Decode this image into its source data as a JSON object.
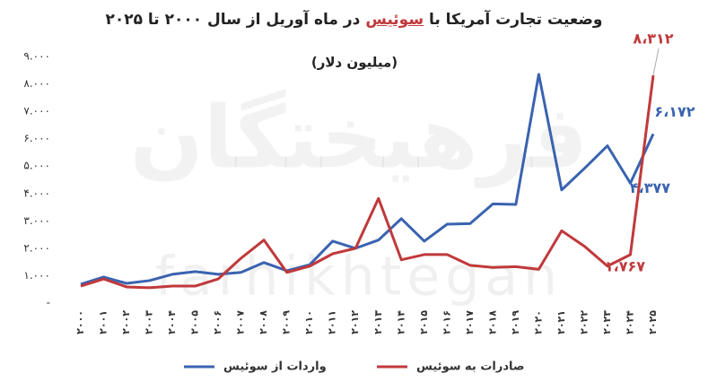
{
  "chart_data": {
    "type": "line",
    "title": [
      "وضعیت تجارت آمریکا با",
      "سوئیس",
      "در ماه آوریل از سال ۲۰۰۰ تا ۲۰۲۵"
    ],
    "subtitle": "(میلیون دلار)",
    "watermark": [
      "فرهیختگان",
      "farhikhtegan"
    ],
    "categories": [
      "۲۰۰۰",
      "۲۰۰۱",
      "۲۰۰۲",
      "۲۰۰۳",
      "۲۰۰۴",
      "۲۰۰۵",
      "۲۰۰۶",
      "۲۰۰۷",
      "۲۰۰۸",
      "۲۰۰۹",
      "۲۰۱۰",
      "۲۰۱۱",
      "۲۰۱۲",
      "۲۰۱۳",
      "۲۰۱۴",
      "۲۰۱۵",
      "۲۰۱۶",
      "۲۰۱۷",
      "۲۰۱۸",
      "۲۰۱۹",
      "۲۰۲۰",
      "۲۰۲۱",
      "۲۰۲۲",
      "۲۰۲۳",
      "۲۰۲۴",
      "۲۰۲۵"
    ],
    "series": [
      {
        "name": "واردات از سوئیس",
        "color": "#3a63b0",
        "values": [
          690,
          950,
          720,
          820,
          1050,
          1150,
          1050,
          1120,
          1480,
          1180,
          1400,
          2260,
          2000,
          2300,
          3080,
          2260,
          2880,
          2900,
          3620,
          3600,
          8350,
          4130,
          4920,
          5740,
          4377,
          6172
        ],
        "value_labels": [
          null,
          null,
          null,
          null,
          null,
          null,
          null,
          null,
          null,
          null,
          null,
          null,
          null,
          null,
          null,
          null,
          null,
          null,
          null,
          null,
          null,
          null,
          null,
          null,
          "۴،۳۷۷",
          "۶،۱۷۲"
        ]
      },
      {
        "name": "صادرات به سوئیس",
        "color": "#c0393b",
        "values": [
          620,
          880,
          590,
          560,
          620,
          620,
          880,
          1640,
          2300,
          1120,
          1350,
          1800,
          2000,
          3820,
          1580,
          1770,
          1770,
          1380,
          1300,
          1330,
          1230,
          2640,
          2070,
          1350,
          1767,
          8312
        ],
        "value_labels": [
          null,
          null,
          null,
          null,
          null,
          null,
          null,
          null,
          null,
          null,
          null,
          null,
          null,
          null,
          null,
          null,
          null,
          null,
          null,
          null,
          null,
          null,
          null,
          null,
          "۱،۷۶۷",
          "۸،۳۱۲"
        ]
      }
    ],
    "ylim": [
      0,
      9000
    ],
    "yticks": [
      {
        "value": 0,
        "label": "-"
      },
      {
        "value": 1000,
        "label": "۱.۰۰۰"
      },
      {
        "value": 2000,
        "label": "۲.۰۰۰"
      },
      {
        "value": 3000,
        "label": "۳.۰۰۰"
      },
      {
        "value": 4000,
        "label": "۴.۰۰۰"
      },
      {
        "value": 5000,
        "label": "۵.۰۰۰"
      },
      {
        "value": 6000,
        "label": "۶.۰۰۰"
      },
      {
        "value": 7000,
        "label": "۷.۰۰۰"
      },
      {
        "value": 8000,
        "label": "۸.۰۰۰"
      },
      {
        "value": 9000,
        "label": "۹.۰۰۰"
      }
    ],
    "grid": false
  }
}
